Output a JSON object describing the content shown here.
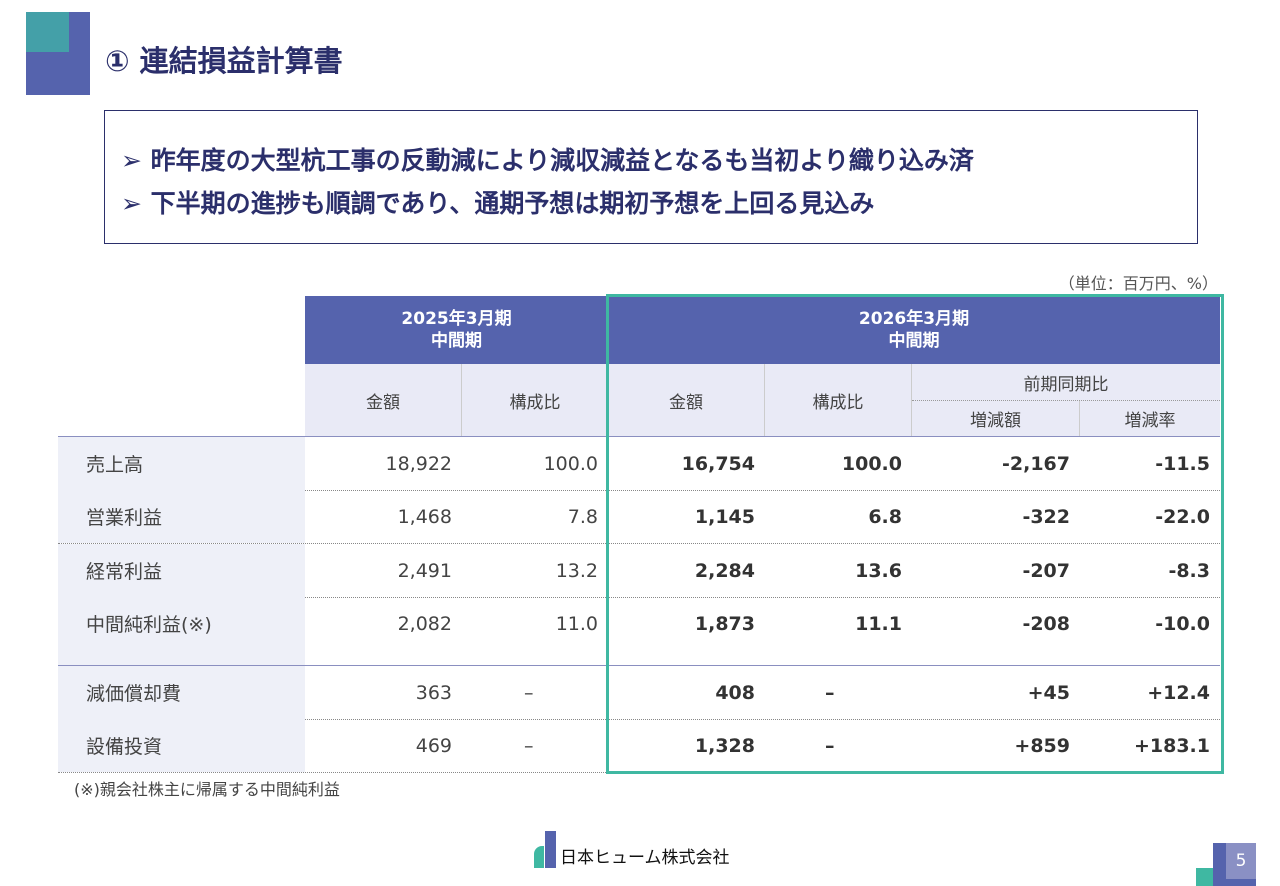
{
  "title": "① 連結損益計算書",
  "bullets": [
    "昨年度の大型杭工事の反動減により減収減益となるも当初より織り込み済",
    "下半期の進捗も順調であり、通期予想は期初予想を上回る見込み"
  ],
  "bullet_marker": "➢",
  "unit": "（単位：百万円、%）",
  "headers": {
    "prev_period": [
      "2025年3月期",
      "中間期"
    ],
    "cur_period": [
      "2026年3月期",
      "中間期"
    ],
    "amount": "金額",
    "ratio": "構成比",
    "yoy": "前期同期比",
    "change_amount": "増減額",
    "change_rate": "増減率"
  },
  "rows": [
    {
      "label": "売上高",
      "prev_amount": "18,922",
      "prev_ratio": "100.0",
      "amount": "16,754",
      "ratio": "100.0",
      "change": "-2,167",
      "rate": "-11.5"
    },
    {
      "label": "営業利益",
      "prev_amount": "1,468",
      "prev_ratio": "7.8",
      "amount": "1,145",
      "ratio": "6.8",
      "change": "-322",
      "rate": "-22.0"
    },
    {
      "label": "経常利益",
      "prev_amount": "2,491",
      "prev_ratio": "13.2",
      "amount": "2,284",
      "ratio": "13.6",
      "change": "-207",
      "rate": "-8.3"
    },
    {
      "label": "中間純利益(※)",
      "prev_amount": "2,082",
      "prev_ratio": "11.0",
      "amount": "1,873",
      "ratio": "11.1",
      "change": "-208",
      "rate": "-10.0"
    },
    {
      "label": "減価償却費",
      "prev_amount": "363",
      "prev_ratio": "–",
      "amount": "408",
      "ratio": "–",
      "change": "+45",
      "rate": "+12.4"
    },
    {
      "label": "設備投資",
      "prev_amount": "469",
      "prev_ratio": "–",
      "amount": "1,328",
      "ratio": "–",
      "change": "+859",
      "rate": "+183.1"
    }
  ],
  "footnote": "(※)親会社株主に帰属する中間純利益",
  "company": "日本ヒューム株式会社",
  "page": "5"
}
